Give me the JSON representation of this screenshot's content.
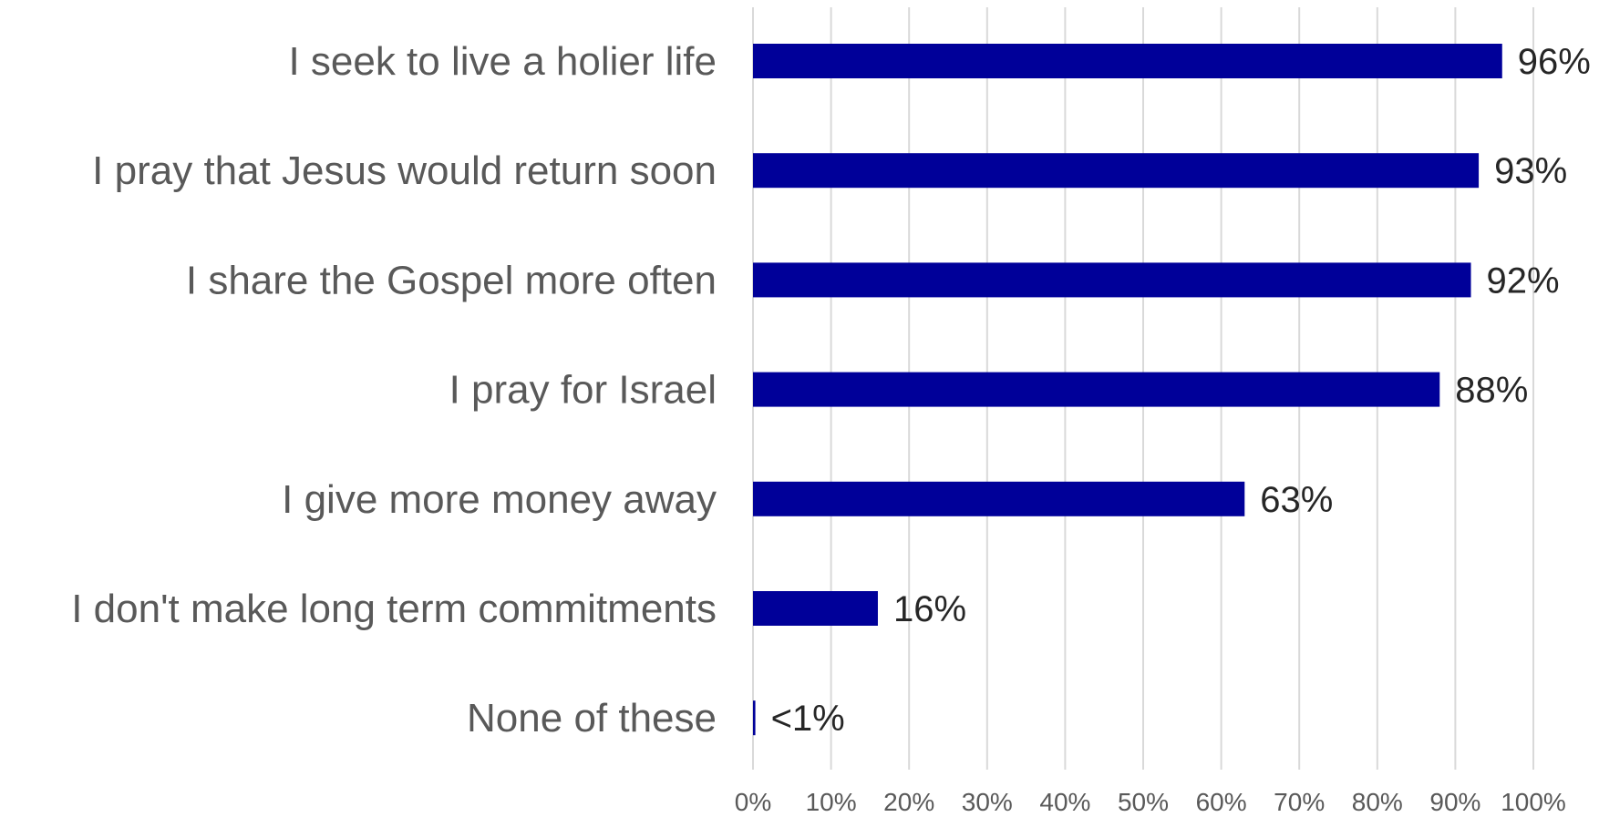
{
  "chart_data": {
    "type": "bar",
    "orientation": "horizontal",
    "categories": [
      "I seek to live a holier life",
      "I pray that Jesus would return soon",
      "I share the Gospel more often",
      "I pray for Israel",
      "I give more money away",
      "I don't make long term commitments",
      "None of these"
    ],
    "values": [
      96,
      93,
      92,
      88,
      63,
      16,
      0.3
    ],
    "data_labels": [
      "96%",
      "93%",
      "92%",
      "88%",
      "63%",
      "16%",
      "<1%"
    ],
    "x_ticks": [
      "0%",
      "10%",
      "20%",
      "30%",
      "40%",
      "50%",
      "60%",
      "70%",
      "80%",
      "90%",
      "100%"
    ],
    "xlim": [
      0,
      100
    ],
    "grid": "vertical",
    "legend": "none",
    "bar_color": "#000099"
  }
}
